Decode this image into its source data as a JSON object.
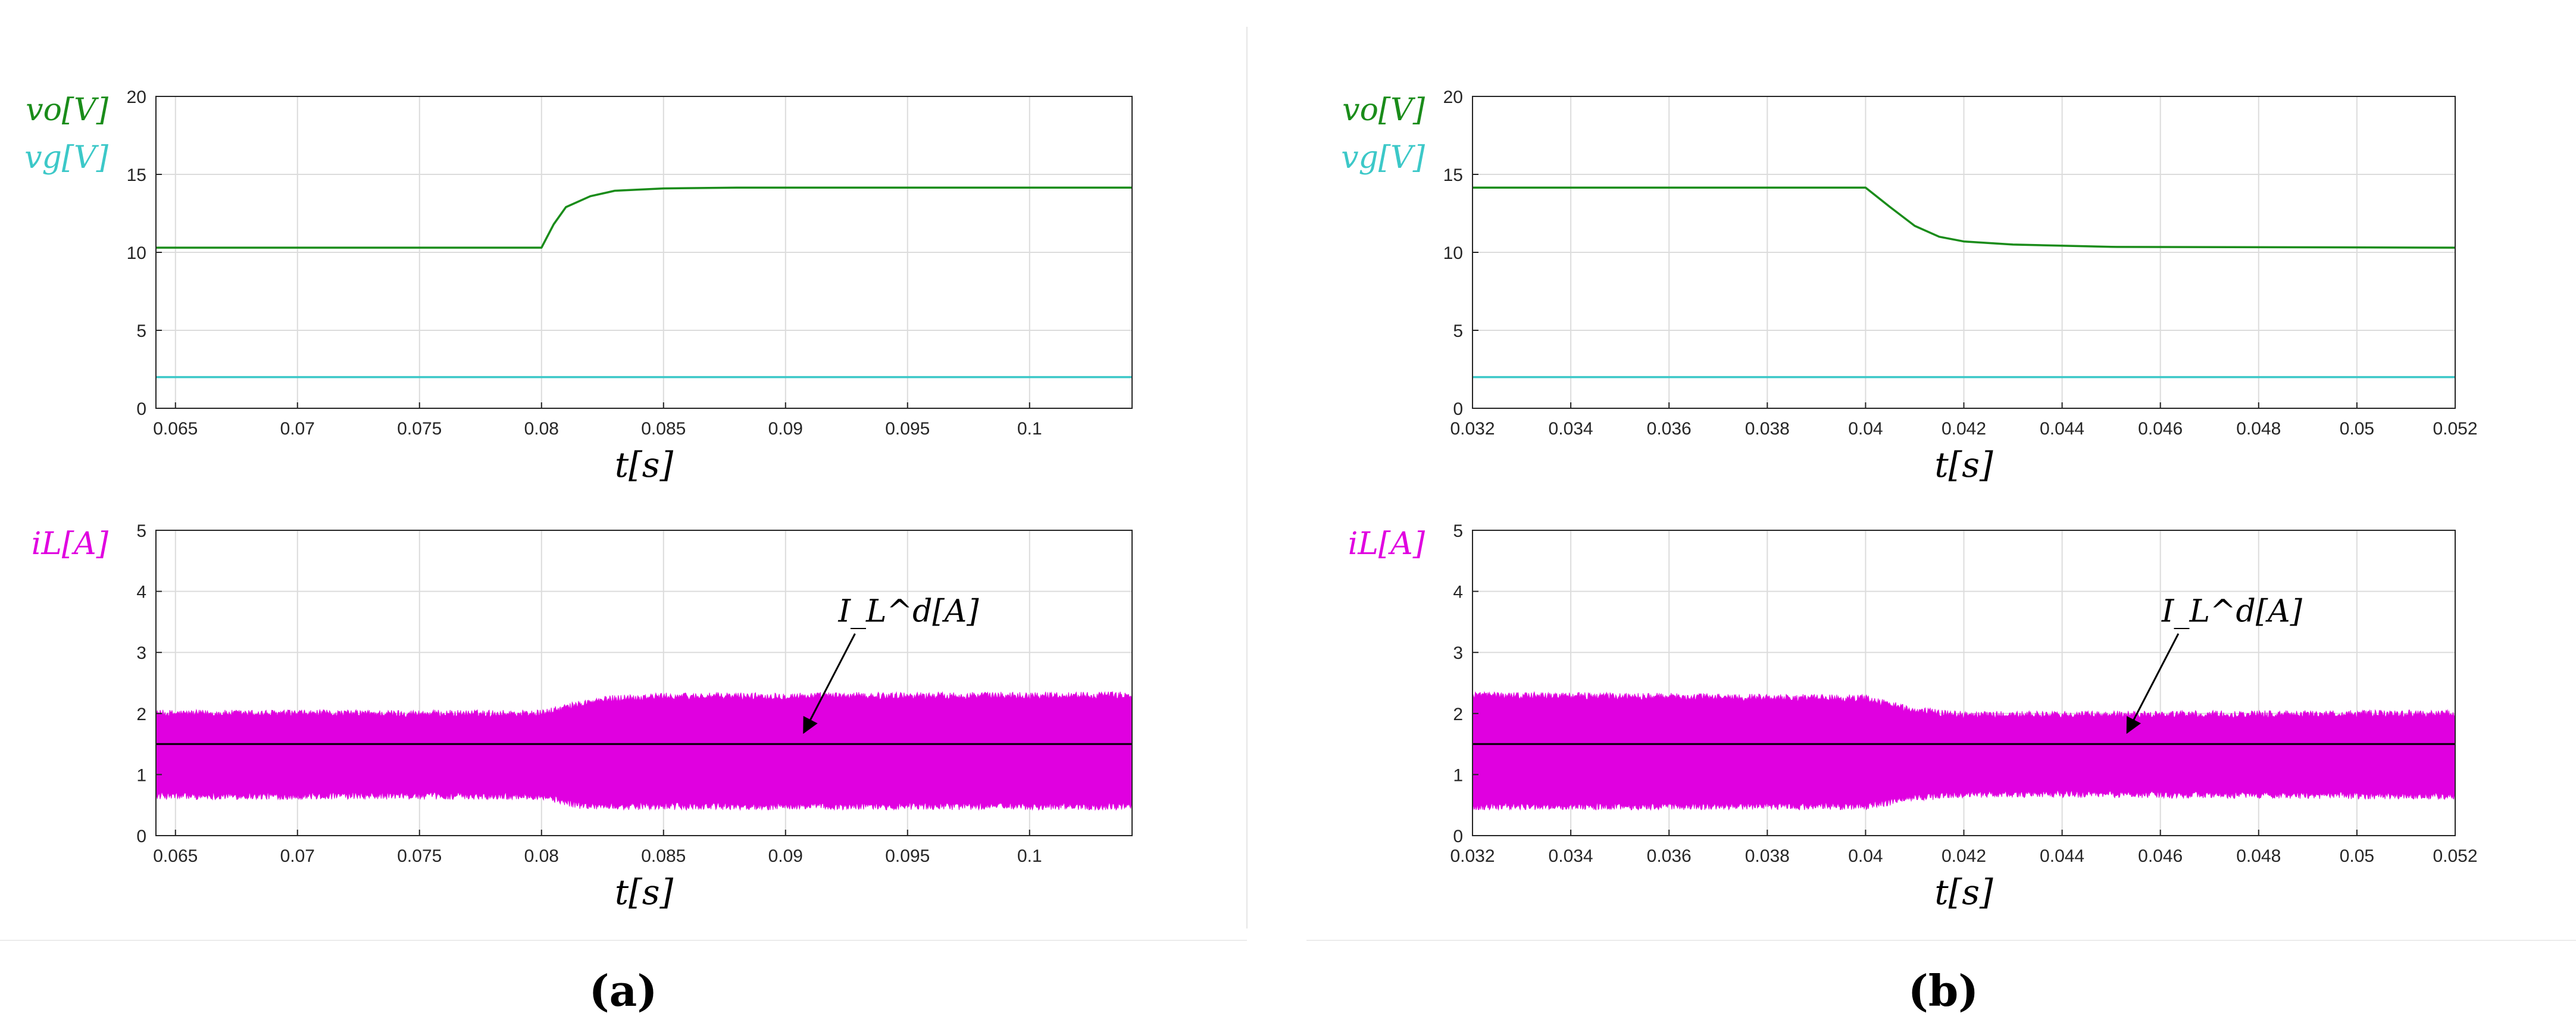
{
  "panels": [
    {
      "label": "(a)",
      "chart_data": [
        {
          "type": "line",
          "xlabel": "t[s]",
          "ylabels": [
            "vo[V]",
            "vg[V]"
          ],
          "xlim": [
            0.0642,
            0.1042
          ],
          "ylim": [
            0,
            20
          ],
          "xticks": [
            0.065,
            0.07,
            0.075,
            0.08,
            0.085,
            0.09,
            0.095,
            0.1
          ],
          "xtick_labels": [
            "0.065",
            "0.07",
            "0.075",
            "0.08",
            "0.085",
            "0.09",
            "0.095",
            "0.1"
          ],
          "yticks": [
            0,
            5,
            10,
            15,
            20
          ],
          "ytick_labels": [
            "0",
            "5",
            "10",
            "15",
            "20"
          ],
          "grid": true,
          "series": [
            {
              "color": "#1a8c1a",
              "x": [
                0.0642,
                0.08,
                0.0805,
                0.081,
                0.082,
                0.083,
                0.085,
                0.088,
                0.1042
              ],
              "y": [
                10.3,
                10.3,
                11.8,
                12.9,
                13.6,
                13.95,
                14.1,
                14.15,
                14.15
              ]
            },
            {
              "color": "#3cc8c8",
              "x": [
                0.0642,
                0.1042
              ],
              "y": [
                2.0,
                2.0
              ]
            }
          ]
        },
        {
          "type": "area",
          "xlabel": "t[s]",
          "ylabels": [
            "iL[A]"
          ],
          "xlim": [
            0.0642,
            0.1042
          ],
          "ylim": [
            0,
            5
          ],
          "xticks": [
            0.065,
            0.07,
            0.075,
            0.08,
            0.085,
            0.09,
            0.095,
            0.1
          ],
          "xtick_labels": [
            "0.065",
            "0.07",
            "0.075",
            "0.08",
            "0.085",
            "0.09",
            "0.095",
            "0.1"
          ],
          "yticks": [
            0,
            1,
            2,
            3,
            4,
            5
          ],
          "ytick_labels": [
            "0",
            "1",
            "2",
            "3",
            "4",
            "5"
          ],
          "grid": true,
          "band": {
            "color": "#e000e0",
            "x": [
              0.0642,
              0.08,
              0.0815,
              0.083,
              0.085,
              0.1042
            ],
            "upper": [
              2.0,
              2.0,
              2.15,
              2.25,
              2.28,
              2.3
            ],
            "lower": [
              0.65,
              0.65,
              0.5,
              0.48,
              0.48,
              0.48
            ]
          },
          "reference": {
            "color": "#000000",
            "y": 1.5
          },
          "annotation": {
            "text": "I_L^d[A]",
            "x_arrow": 0.0907,
            "y_arrow": 1.65
          }
        }
      ]
    },
    {
      "label": "(b)",
      "chart_data": [
        {
          "type": "line",
          "xlabel": "t[s]",
          "ylabels": [
            "vo[V]",
            "vg[V]"
          ],
          "xlim": [
            0.032,
            0.052
          ],
          "ylim": [
            0,
            20
          ],
          "xticks": [
            0.032,
            0.034,
            0.036,
            0.038,
            0.04,
            0.042,
            0.044,
            0.046,
            0.048,
            0.05,
            0.052
          ],
          "xtick_labels": [
            "0.032",
            "0.034",
            "0.036",
            "0.038",
            "0.04",
            "0.042",
            "0.044",
            "0.046",
            "0.048",
            "0.05",
            "0.052"
          ],
          "yticks": [
            0,
            5,
            10,
            15,
            20
          ],
          "ytick_labels": [
            "0",
            "5",
            "10",
            "15",
            "20"
          ],
          "grid": true,
          "series": [
            {
              "color": "#1a8c1a",
              "x": [
                0.032,
                0.04,
                0.0405,
                0.041,
                0.0415,
                0.042,
                0.043,
                0.045,
                0.052
              ],
              "y": [
                14.15,
                14.15,
                12.9,
                11.7,
                11.0,
                10.7,
                10.5,
                10.35,
                10.3
              ]
            },
            {
              "color": "#3cc8c8",
              "x": [
                0.032,
                0.052
              ],
              "y": [
                2.0,
                2.0
              ]
            }
          ]
        },
        {
          "type": "area",
          "xlabel": "t[s]",
          "ylabels": [
            "iL[A]"
          ],
          "xlim": [
            0.032,
            0.052
          ],
          "ylim": [
            0,
            5
          ],
          "xticks": [
            0.032,
            0.034,
            0.036,
            0.038,
            0.04,
            0.042,
            0.044,
            0.046,
            0.048,
            0.05,
            0.052
          ],
          "xtick_labels": [
            "0.032",
            "0.034",
            "0.036",
            "0.038",
            "0.04",
            "0.042",
            "0.044",
            "0.046",
            "0.048",
            "0.05",
            "0.052"
          ],
          "yticks": [
            0,
            1,
            2,
            3,
            4,
            5
          ],
          "ytick_labels": [
            "0",
            "1",
            "2",
            "3",
            "4",
            "5"
          ],
          "grid": true,
          "band": {
            "color": "#e000e0",
            "x": [
              0.032,
              0.04,
              0.041,
              0.042,
              0.044,
              0.052
            ],
            "upper": [
              2.3,
              2.25,
              2.05,
              1.98,
              1.98,
              2.0
            ],
            "lower": [
              0.48,
              0.48,
              0.62,
              0.68,
              0.68,
              0.65
            ]
          },
          "reference": {
            "color": "#000000",
            "y": 1.5
          },
          "annotation": {
            "text": "I_L^d[A]",
            "x_arrow": 0.0453,
            "y_arrow": 1.65
          }
        }
      ]
    }
  ]
}
